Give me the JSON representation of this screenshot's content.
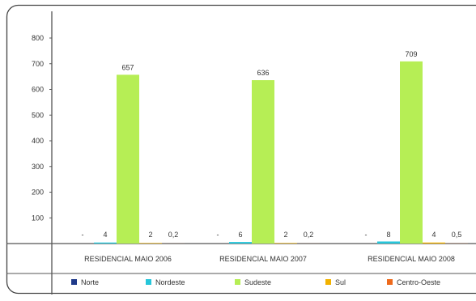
{
  "chart_data": {
    "type": "bar",
    "categories": [
      "RESIDENCIAL MAIO 2006",
      "RESIDENCIAL MAIO 2007",
      "RESIDENCIAL MAIO 2008"
    ],
    "series": [
      {
        "name": "Norte",
        "color": "#1f3a8a",
        "values": [
          0,
          0,
          0
        ],
        "labels": [
          "-",
          "-",
          "-"
        ]
      },
      {
        "name": "Nordeste",
        "color": "#26c6da",
        "values": [
          4,
          6,
          8
        ],
        "labels": [
          "4",
          "6",
          "8"
        ]
      },
      {
        "name": "Sudeste",
        "color": "#b6ee55",
        "values": [
          657,
          636,
          709
        ],
        "labels": [
          "657",
          "636",
          "709"
        ]
      },
      {
        "name": "Sul",
        "color": "#f2b200",
        "values": [
          2,
          2,
          4
        ],
        "labels": [
          "2",
          "2",
          "4"
        ]
      },
      {
        "name": "Centro-Oeste",
        "color": "#ee6a1c",
        "values": [
          0.2,
          0.2,
          0.5
        ],
        "labels": [
          "0,2",
          "0,2",
          "0,5"
        ]
      }
    ],
    "y_ticks": [
      "100",
      "200",
      "300",
      "400",
      "500",
      "600",
      "700",
      "800"
    ],
    "ylim": [
      0,
      800
    ],
    "grid": false,
    "legend_position": "bottom",
    "title": "",
    "xlabel": "",
    "ylabel": ""
  }
}
